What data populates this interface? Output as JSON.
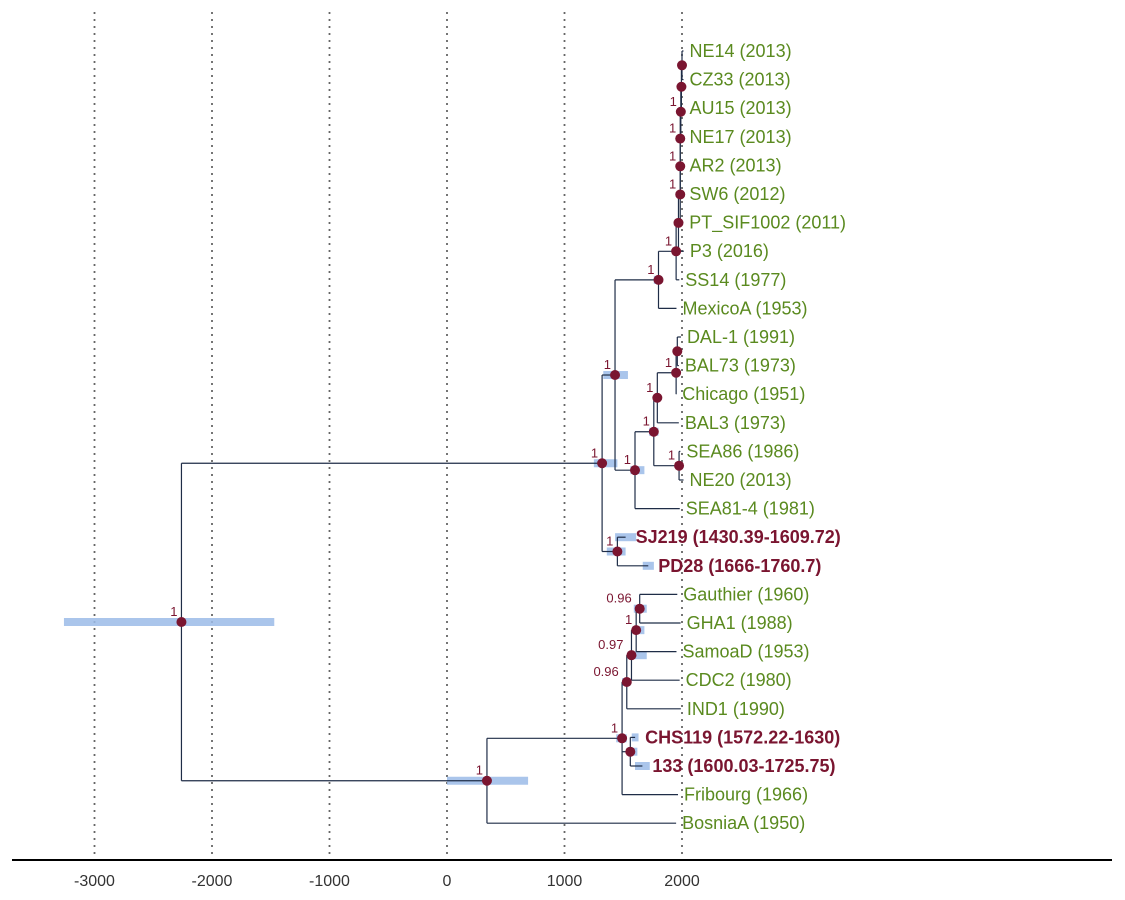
{
  "colors": {
    "modern_tip": "#5a8a1f",
    "ancient_tip": "#7a1530",
    "node": "#7a1530",
    "branch": "#1f2d47",
    "hpd_bar": "#9bbbe8",
    "grid": "#666666",
    "axis": "#000000"
  },
  "axis": {
    "ticks": [
      -3000,
      -2000,
      -1000,
      0,
      1000,
      2000
    ],
    "tick_labels": [
      "-3000",
      "-2000",
      "-1000",
      "0",
      "1000",
      "2000"
    ]
  },
  "tips": [
    {
      "label": "NE14 (2013)",
      "year": 2013,
      "ancient": false
    },
    {
      "label": "CZ33 (2013)",
      "year": 2013,
      "ancient": false
    },
    {
      "label": "AU15 (2013)",
      "year": 2013,
      "ancient": false
    },
    {
      "label": "NE17 (2013)",
      "year": 2013,
      "ancient": false
    },
    {
      "label": "AR2 (2013)",
      "year": 2013,
      "ancient": false
    },
    {
      "label": "SW6 (2012)",
      "year": 2012,
      "ancient": false
    },
    {
      "label": "PT_SIF1002 (2011)",
      "year": 2011,
      "ancient": false
    },
    {
      "label": "P3 (2016)",
      "year": 2016,
      "ancient": false
    },
    {
      "label": "SS14 (1977)",
      "year": 1977,
      "ancient": false
    },
    {
      "label": "MexicoA (1953)",
      "year": 1953,
      "ancient": false
    },
    {
      "label": "DAL-1 (1991)",
      "year": 1991,
      "ancient": false
    },
    {
      "label": "BAL73 (1973)",
      "year": 1973,
      "ancient": false
    },
    {
      "label": "Chicago (1951)",
      "year": 1951,
      "ancient": false
    },
    {
      "label": "BAL3 (1973)",
      "year": 1973,
      "ancient": false
    },
    {
      "label": "SEA86 (1986)",
      "year": 1986,
      "ancient": false
    },
    {
      "label": "NE20 (2013)",
      "year": 2013,
      "ancient": false
    },
    {
      "label": "SEA81-4 (1981)",
      "year": 1981,
      "ancient": false
    },
    {
      "label": "SJ219 (1430.39-1609.72)",
      "year": 1520,
      "ancient": true,
      "hpd": [
        1430.39,
        1609.72
      ]
    },
    {
      "label": "PD28 (1666-1760.7)",
      "year": 1713,
      "ancient": true,
      "hpd": [
        1666,
        1760.7
      ]
    },
    {
      "label": "Gauthier (1960)",
      "year": 1960,
      "ancient": false
    },
    {
      "label": "GHA1 (1988)",
      "year": 1988,
      "ancient": false
    },
    {
      "label": "SamoaD (1953)",
      "year": 1953,
      "ancient": false
    },
    {
      "label": "CDC2 (1980)",
      "year": 1980,
      "ancient": false
    },
    {
      "label": "IND1 (1990)",
      "year": 1990,
      "ancient": false
    },
    {
      "label": "CHS119 (1572.22-1630)",
      "year": 1601,
      "ancient": true,
      "hpd": [
        1572.22,
        1630
      ]
    },
    {
      "label": "133 (1600.03-1725.75)",
      "year": 1663,
      "ancient": true,
      "hpd": [
        1600.03,
        1725.75
      ]
    },
    {
      "label": "Fribourg (1966)",
      "year": 1966,
      "ancient": false
    },
    {
      "label": "BosniaA (1950)",
      "year": 1950,
      "ancient": false
    }
  ],
  "nodes": {
    "root": {
      "year": -2260,
      "support": "1",
      "hpd": [
        -3260,
        -1470
      ]
    },
    "n_main": {
      "year": 1320,
      "support": "1",
      "hpd": [
        1250,
        1450
      ]
    },
    "n_nichols_big": {
      "year": 1430,
      "support": "1",
      "hpd": [
        1330,
        1540
      ]
    },
    "n_nichols": {
      "year": 1800,
      "support": "1",
      "hpd": [
        1760,
        1830
      ]
    },
    "n_modern": {
      "year": 1950,
      "support": "1",
      "hpd": [
        1920,
        1970
      ]
    },
    "n_pt_p3": {
      "year": 1970,
      "support": ""
    },
    "n_ne_clade": {
      "year": 1985,
      "support": "1"
    },
    "n_sw6": {
      "year": 1985,
      "support": "1"
    },
    "n_ar2": {
      "year": 1985,
      "support": "1"
    },
    "n_au15": {
      "year": 1990,
      "support": "1"
    },
    "n_ne14_cz33": {
      "year": 1995,
      "support": ""
    },
    "n_ne14_top": {
      "year": 2000,
      "support": ""
    },
    "n_ss14_group": {
      "year": 1600,
      "support": "1",
      "hpd": [
        1560,
        1680
      ]
    },
    "n_ss14b": {
      "year": 1760,
      "support": "1",
      "hpd": [
        1720,
        1800
      ]
    },
    "n_chicago": {
      "year": 1790,
      "support": "1",
      "hpd": [
        1760,
        1810
      ]
    },
    "n_bal73": {
      "year": 1950,
      "support": "1"
    },
    "n_dal1": {
      "year": 1960,
      "support": ""
    },
    "n_sea86": {
      "year": 1975,
      "support": "1"
    },
    "n_sj_pd": {
      "year": 1450,
      "support": "1",
      "hpd": [
        1360,
        1520
      ]
    },
    "n_bottom": {
      "year": 340,
      "support": "1",
      "hpd": [
        0,
        690
      ]
    },
    "n_teng": {
      "year": 1490,
      "support": "1",
      "hpd": [
        1440,
        1530
      ]
    },
    "n_chs_133": {
      "year": 1560,
      "support": "",
      "hpd": [
        1530,
        1620
      ]
    },
    "n_ind1": {
      "year": 1530,
      "support": "0.96",
      "hpd": [
        1490,
        1560
      ]
    },
    "n_cdc2": {
      "year": 1570,
      "support": "0.97",
      "hpd": [
        1540,
        1700
      ]
    },
    "n_samoa": {
      "year": 1610,
      "support": "1",
      "hpd": [
        1580,
        1680
      ]
    },
    "n_gauthier": {
      "year": 1640,
      "support": "0.96",
      "hpd": [
        1590,
        1700
      ]
    }
  }
}
